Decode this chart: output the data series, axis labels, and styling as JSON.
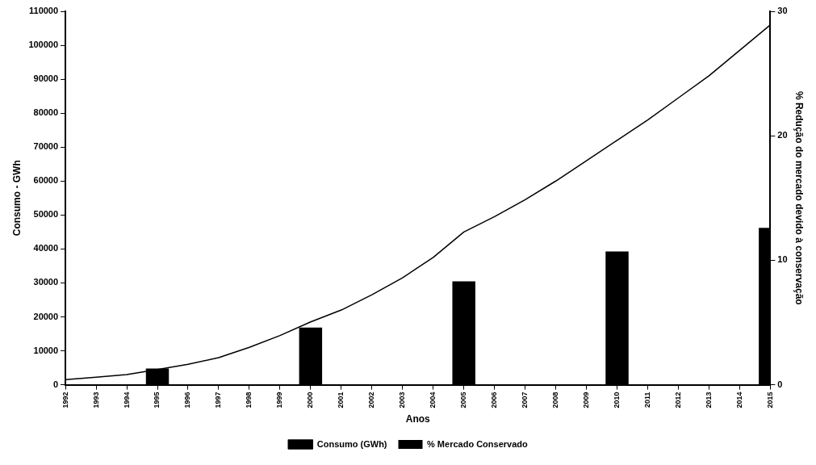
{
  "chart_data": {
    "type": "bar",
    "xlabel": "Anos",
    "ylabel": "Consumo - GWh",
    "y2label": "% Redução do mercado devido à conservação",
    "categories": [
      "1992",
      "1993",
      "1994",
      "1995",
      "1996",
      "1997",
      "1998",
      "1999",
      "2000",
      "2001",
      "2002",
      "2003",
      "2004",
      "2005",
      "2006",
      "2007",
      "2008",
      "2009",
      "2010",
      "2011",
      "2012",
      "2013",
      "2014",
      "2015"
    ],
    "series": [
      {
        "name": "Consumo (GWh)",
        "type": "line",
        "color": "#000000",
        "values": [
          1500,
          2200,
          3000,
          4500,
          6000,
          8000,
          11000,
          14500,
          18500,
          22000,
          26500,
          31500,
          37500,
          45000,
          49500,
          54500,
          60000,
          66000,
          72000,
          78000,
          84500,
          91000,
          98500,
          106000
        ]
      },
      {
        "name": "% Mercado Conservado",
        "axis": "y2",
        "color": "#000000",
        "values": [
          null,
          null,
          null,
          1.3,
          null,
          null,
          null,
          null,
          4.6,
          null,
          null,
          null,
          null,
          8.3,
          null,
          null,
          null,
          null,
          10.7,
          null,
          null,
          null,
          null,
          12.6
        ]
      }
    ],
    "ylim": [
      0,
      110000
    ],
    "yticks": [
      0,
      10000,
      20000,
      30000,
      40000,
      50000,
      60000,
      70000,
      80000,
      90000,
      100000,
      110000
    ],
    "y2lim": [
      0,
      30
    ],
    "y2ticks": [
      0,
      10,
      20,
      30
    ],
    "grid": false,
    "legend": "bottom",
    "marker": "none",
    "line_style": "solid"
  }
}
